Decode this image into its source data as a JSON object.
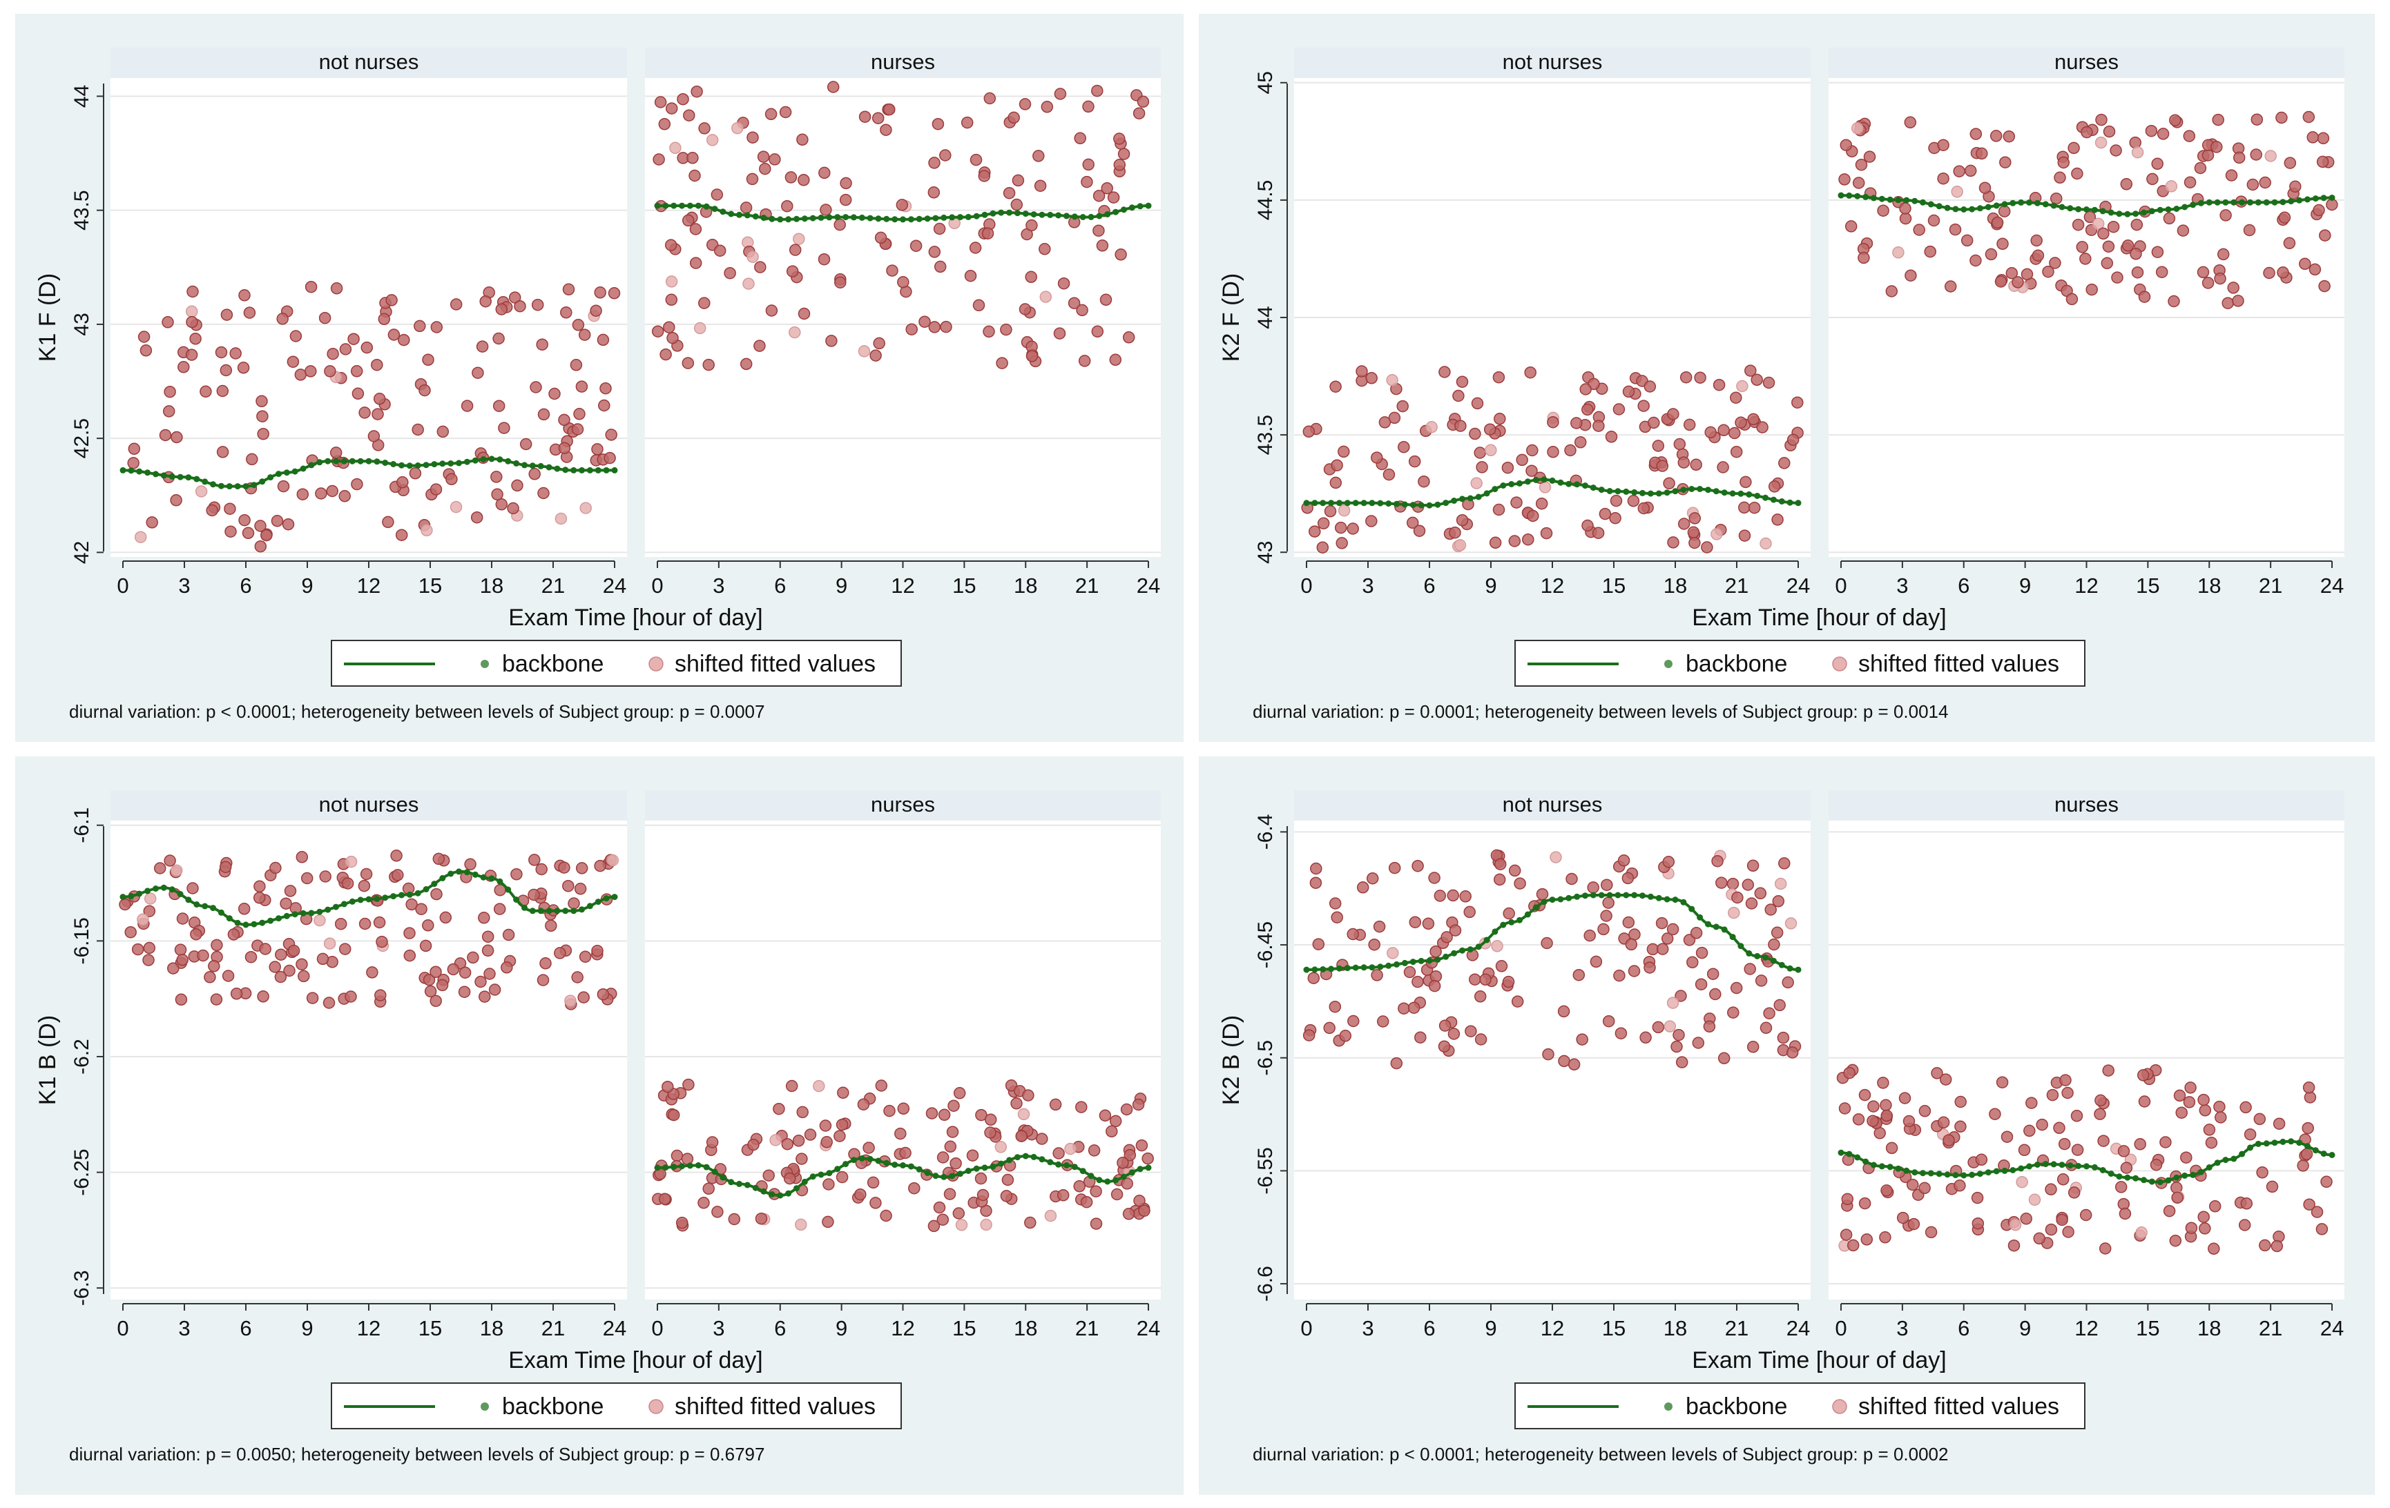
{
  "chart_data": [
    {
      "type": "scatter",
      "ylabel": "K1 F (D)",
      "xlabel": "Exam Time [hour of day]",
      "ylim": [
        41.98,
        44.08
      ],
      "yticks": [
        42,
        42.5,
        43,
        43.5,
        44
      ],
      "ytick_labels": [
        "42",
        "42.5",
        "43",
        "43.5",
        "44"
      ],
      "xlim": [
        0,
        24
      ],
      "xticks": [
        0,
        3,
        6,
        9,
        12,
        15,
        18,
        21,
        24
      ],
      "xtick_labels": [
        "0",
        "3",
        "6",
        "9",
        "12",
        "15",
        "18",
        "21",
        "24"
      ],
      "groups": [
        {
          "name": "not nurses",
          "backbone": [
            [
              0,
              42.36
            ],
            [
              3,
              42.33
            ],
            [
              5,
              42.29
            ],
            [
              6,
              42.29
            ],
            [
              8,
              42.35
            ],
            [
              10,
              42.4
            ],
            [
              12,
              42.4
            ],
            [
              14,
              42.38
            ],
            [
              16,
              42.39
            ],
            [
              18,
              42.41
            ],
            [
              20,
              42.38
            ],
            [
              22,
              42.36
            ],
            [
              24,
              42.36
            ]
          ],
          "band": [
            42.02,
            43.18
          ]
        },
        {
          "name": "nurses",
          "backbone": [
            [
              0,
              43.52
            ],
            [
              2,
              43.52
            ],
            [
              4,
              43.48
            ],
            [
              6,
              43.46
            ],
            [
              9,
              43.47
            ],
            [
              12,
              43.46
            ],
            [
              15,
              43.47
            ],
            [
              17,
              43.49
            ],
            [
              19,
              43.48
            ],
            [
              21,
              43.47
            ],
            [
              24,
              43.52
            ]
          ],
          "band": [
            42.82,
            44.05
          ]
        }
      ],
      "legend": {
        "line_label": "",
        "backbone_label": "backbone",
        "fitted_label": "shifted fitted values"
      },
      "note": "diurnal variation: p < 0.0001; heterogeneity between levels of Subject group: p = 0.0007"
    },
    {
      "type": "scatter",
      "ylabel": "K2 F (D)",
      "xlabel": "Exam Time [hour of day]",
      "ylim": [
        42.98,
        45.02
      ],
      "yticks": [
        43,
        43.5,
        44,
        44.5,
        45
      ],
      "ytick_labels": [
        "43",
        "43.5",
        "44",
        "44.5",
        "45"
      ],
      "xlim": [
        0,
        24
      ],
      "xticks": [
        0,
        3,
        6,
        9,
        12,
        15,
        18,
        21,
        24
      ],
      "xtick_labels": [
        "0",
        "3",
        "6",
        "9",
        "12",
        "15",
        "18",
        "21",
        "24"
      ],
      "groups": [
        {
          "name": "not nurses",
          "backbone": [
            [
              0,
              43.21
            ],
            [
              3,
              43.21
            ],
            [
              6,
              43.2
            ],
            [
              8,
              43.23
            ],
            [
              10,
              43.29
            ],
            [
              11.5,
              43.31
            ],
            [
              13,
              43.29
            ],
            [
              15,
              43.26
            ],
            [
              17,
              43.25
            ],
            [
              19,
              43.27
            ],
            [
              21,
              43.25
            ],
            [
              24,
              43.21
            ]
          ],
          "band": [
            43.02,
            43.78
          ]
        },
        {
          "name": "nurses",
          "backbone": [
            [
              0,
              44.52
            ],
            [
              3,
              44.5
            ],
            [
              6,
              44.46
            ],
            [
              9,
              44.49
            ],
            [
              12,
              44.46
            ],
            [
              14,
              44.44
            ],
            [
              16,
              44.46
            ],
            [
              18,
              44.49
            ],
            [
              21,
              44.49
            ],
            [
              24,
              44.51
            ]
          ],
          "band": [
            44.05,
            44.86
          ]
        }
      ],
      "legend": {
        "line_label": "",
        "backbone_label": "backbone",
        "fitted_label": "shifted fitted values"
      },
      "note": "diurnal variation: p = 0.0001; heterogeneity between levels of Subject group: p = 0.0014"
    },
    {
      "type": "scatter",
      "ylabel": "K1 B (D)",
      "xlabel": "Exam Time [hour of day]",
      "ylim": [
        -6.305,
        -6.098
      ],
      "yticks": [
        -6.1,
        -6.15,
        -6.2,
        -6.25,
        -6.3
      ],
      "ytick_labels": [
        "-6.1",
        "-6.15",
        "-6.2",
        "-6.25",
        "-6.3"
      ],
      "xlim": [
        0,
        24
      ],
      "xticks": [
        0,
        3,
        6,
        9,
        12,
        15,
        18,
        21,
        24
      ],
      "xtick_labels": [
        "0",
        "3",
        "6",
        "9",
        "12",
        "15",
        "18",
        "21",
        "24"
      ],
      "groups": [
        {
          "name": "not nurses",
          "backbone": [
            [
              0,
              -6.131
            ],
            [
              2,
              -6.127
            ],
            [
              4,
              -6.135
            ],
            [
              6,
              -6.143
            ],
            [
              9,
              -6.138
            ],
            [
              12,
              -6.132
            ],
            [
              14,
              -6.13
            ],
            [
              16.5,
              -6.12
            ],
            [
              18,
              -6.123
            ],
            [
              20,
              -6.137
            ],
            [
              22,
              -6.137
            ],
            [
              24,
              -6.131
            ]
          ],
          "band": [
            -6.178,
            -6.113
          ]
        },
        {
          "name": "nurses",
          "backbone": [
            [
              0,
              -6.248
            ],
            [
              2,
              -6.247
            ],
            [
              4,
              -6.255
            ],
            [
              6,
              -6.26
            ],
            [
              8,
              -6.251
            ],
            [
              10,
              -6.244
            ],
            [
              12,
              -6.247
            ],
            [
              14,
              -6.252
            ],
            [
              16,
              -6.248
            ],
            [
              18,
              -6.243
            ],
            [
              20,
              -6.247
            ],
            [
              22,
              -6.254
            ],
            [
              24,
              -6.248
            ]
          ],
          "band": [
            -6.275,
            -6.212
          ]
        }
      ],
      "legend": {
        "line_label": "",
        "backbone_label": "backbone",
        "fitted_label": "shifted fitted values"
      },
      "note": "diurnal variation: p = 0.0050; heterogeneity between levels of Subject group: p = 0.6797"
    },
    {
      "type": "scatter",
      "ylabel": "K2 B (D)",
      "xlabel": "Exam Time [hour of day]",
      "ylim": [
        -6.607,
        -6.395
      ],
      "yticks": [
        -6.4,
        -6.45,
        -6.5,
        -6.55,
        -6.6
      ],
      "ytick_labels": [
        "-6.4",
        "-6.45",
        "-6.5",
        "-6.55",
        "-6.6"
      ],
      "xlim": [
        0,
        24
      ],
      "xticks": [
        0,
        3,
        6,
        9,
        12,
        15,
        18,
        21,
        24
      ],
      "xtick_labels": [
        "0",
        "3",
        "6",
        "9",
        "12",
        "15",
        "18",
        "21",
        "24"
      ],
      "groups": [
        {
          "name": "not nurses",
          "backbone": [
            [
              0,
              -6.461
            ],
            [
              3,
              -6.46
            ],
            [
              6,
              -6.457
            ],
            [
              8,
              -6.452
            ],
            [
              10,
              -6.44
            ],
            [
              12,
              -6.43
            ],
            [
              14,
              -6.428
            ],
            [
              16,
              -6.428
            ],
            [
              18,
              -6.43
            ],
            [
              20,
              -6.442
            ],
            [
              22,
              -6.455
            ],
            [
              24,
              -6.461
            ]
          ],
          "band": [
            -6.503,
            -6.41
          ]
        },
        {
          "name": "nurses",
          "backbone": [
            [
              0,
              -6.542
            ],
            [
              2,
              -6.548
            ],
            [
              4,
              -6.551
            ],
            [
              6,
              -6.552
            ],
            [
              8,
              -6.55
            ],
            [
              10,
              -6.547
            ],
            [
              12,
              -6.548
            ],
            [
              14,
              -6.553
            ],
            [
              15.5,
              -6.555
            ],
            [
              17,
              -6.552
            ],
            [
              19,
              -6.545
            ],
            [
              20.5,
              -6.538
            ],
            [
              22,
              -6.537
            ],
            [
              24,
              -6.543
            ]
          ],
          "band": [
            -6.585,
            -6.505
          ]
        }
      ],
      "legend": {
        "line_label": "",
        "backbone_label": "backbone",
        "fitted_label": "shifted fitted values"
      },
      "note": "diurnal variation: p < 0.0001; heterogeneity between levels of Subject group: p = 0.0002"
    }
  ],
  "colors": {
    "outer_background": "#eaf2f3",
    "plot_background": "#ffffff",
    "strip": "#e7eef3",
    "gridline": "#e6e6e6",
    "backbone": "#1a6e1a",
    "fitted_fill": "#c06a6a",
    "fitted_stroke": "#9b3b3b",
    "fitted_light_fill": "#e6b2b2",
    "text": "#111111"
  }
}
